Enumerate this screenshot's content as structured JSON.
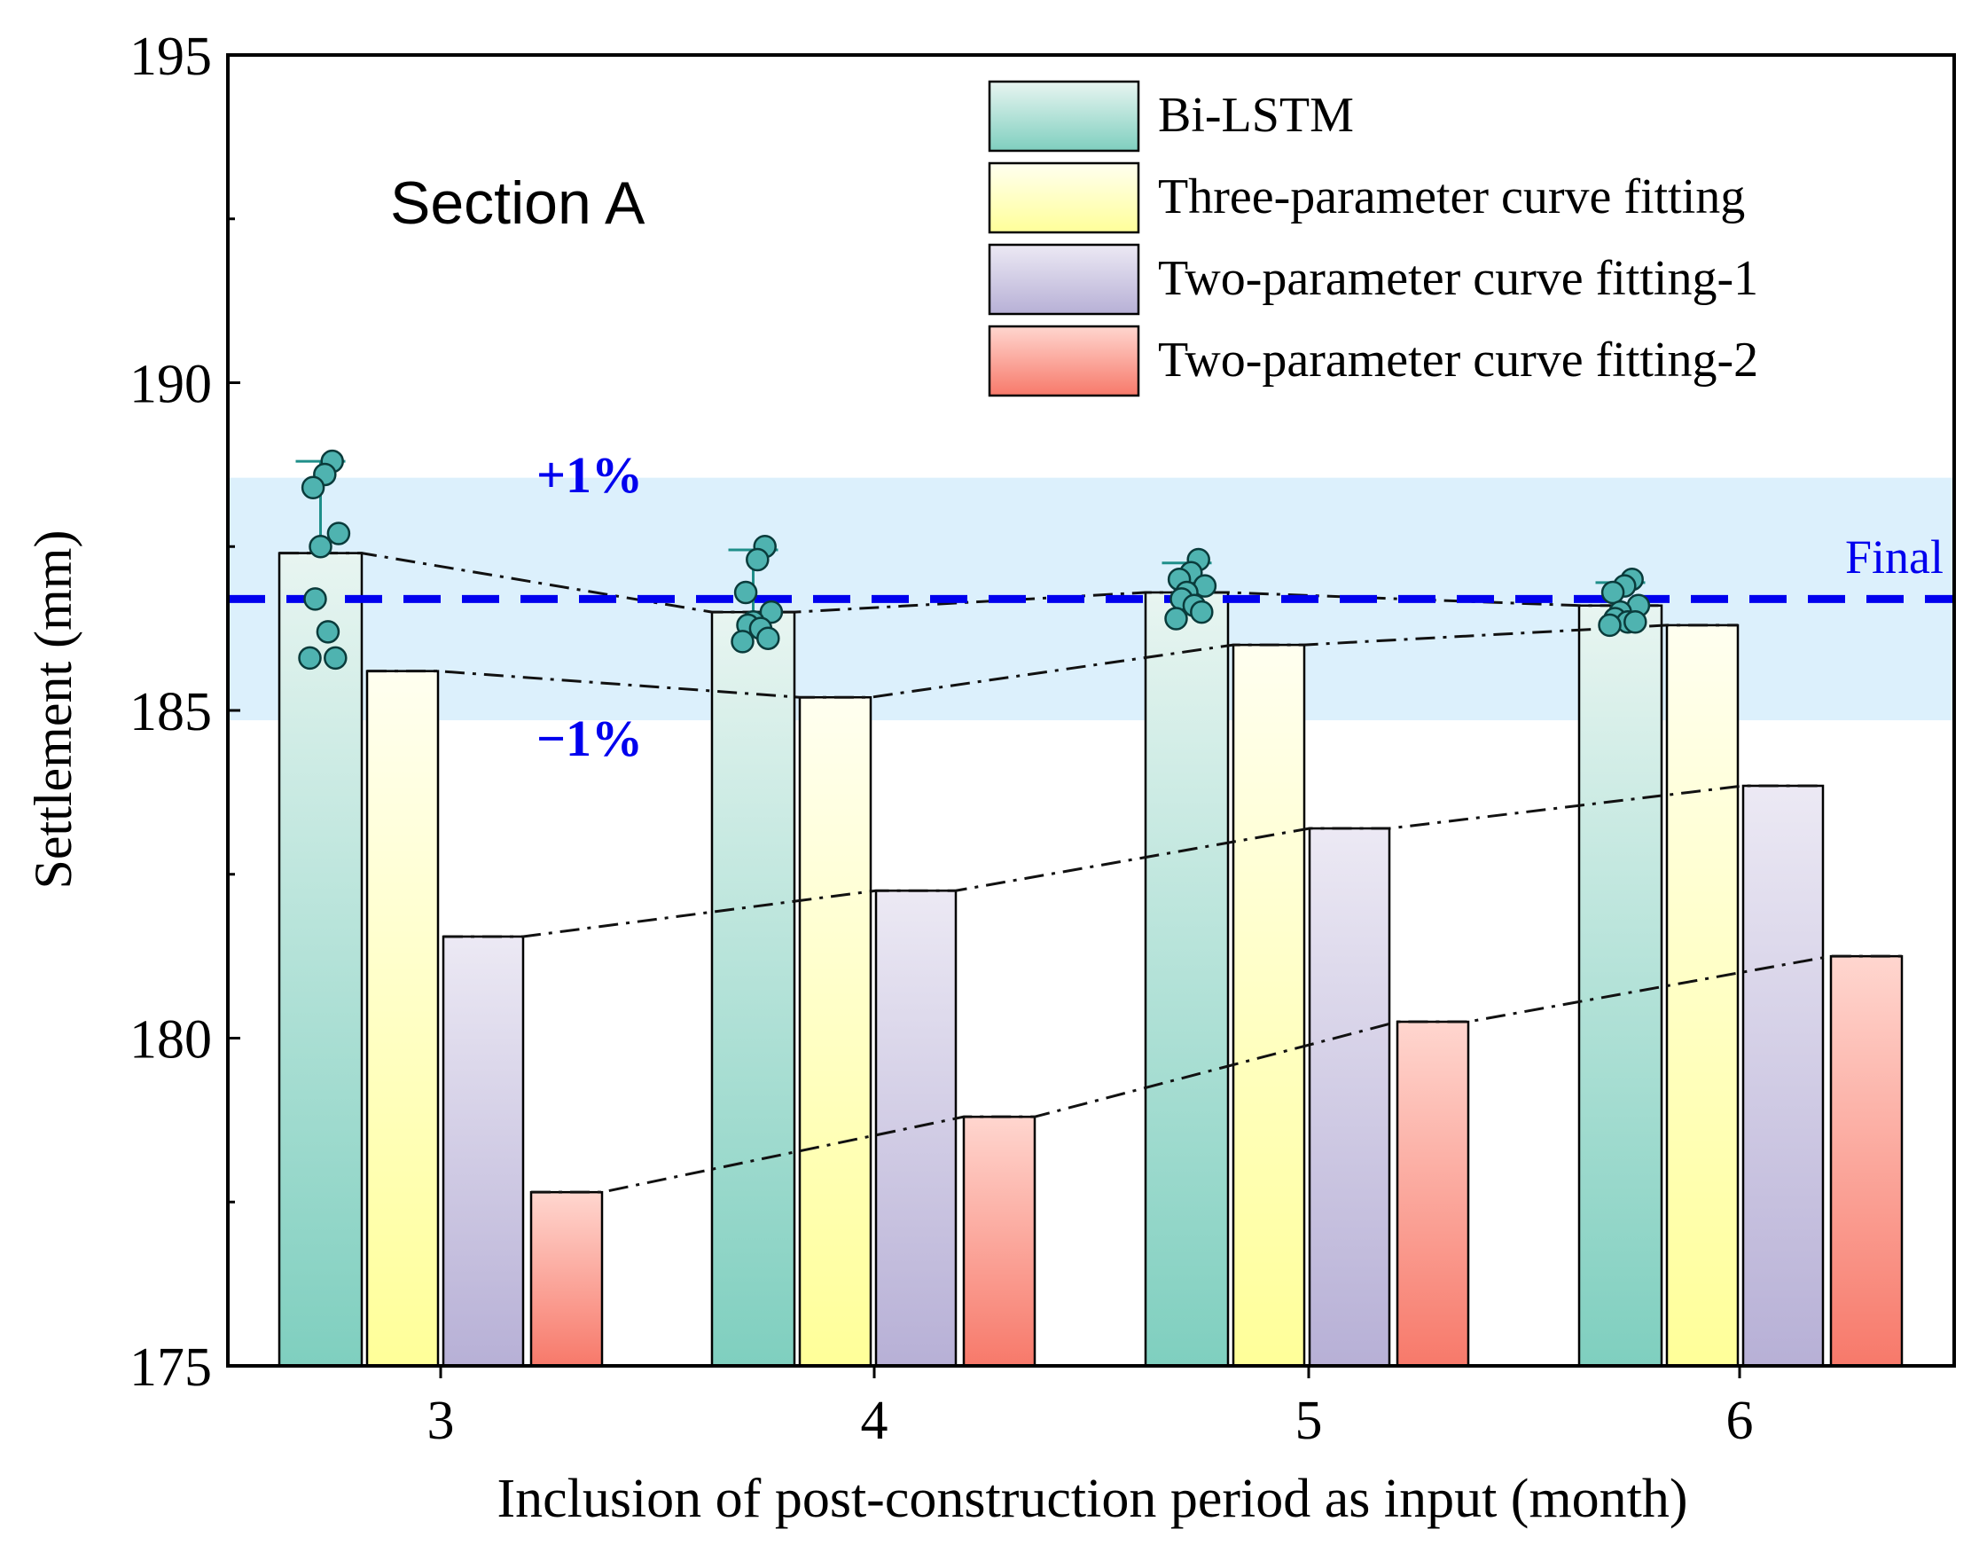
{
  "chart_data": {
    "type": "bar",
    "section_label": "Section A",
    "xlabel": "Inclusion of post-construction period as input (month)",
    "ylabel": "Settlement (mm)",
    "ylim": [
      175,
      195
    ],
    "yticks": [
      175,
      180,
      185,
      190,
      195
    ],
    "categories": [
      "3",
      "4",
      "5",
      "6"
    ],
    "series": [
      {
        "name": "Bi-LSTM",
        "values": [
          187.4,
          186.5,
          186.8,
          186.6
        ],
        "color_top": "#e8f5f1",
        "color_bottom": "#7fcfbf",
        "error_upper": [
          188.8,
          187.45,
          187.25,
          186.95
        ],
        "points": [
          [
            188.8,
            188.6,
            188.4,
            187.7,
            187.5,
            186.7,
            186.2,
            185.8,
            185.8
          ],
          [
            187.5,
            187.3,
            186.8,
            186.5,
            186.35,
            186.3,
            186.25,
            186.1,
            186.05
          ],
          [
            187.3,
            187.1,
            187.0,
            186.9,
            186.8,
            186.7,
            186.6,
            186.5,
            186.4
          ],
          [
            187.0,
            186.9,
            186.8,
            186.6,
            186.5,
            186.4,
            186.35,
            186.35,
            186.3
          ]
        ]
      },
      {
        "name": "Three-parameter curve fitting",
        "values": [
          185.6,
          185.2,
          186.0,
          186.3
        ],
        "color_top": "#fffff0",
        "color_bottom": "#ffff99"
      },
      {
        "name": "Two-parameter curve fitting-1",
        "values": [
          181.55,
          182.25,
          183.2,
          183.85
        ],
        "color_top": "#ece9f4",
        "color_bottom": "#b7b0d6"
      },
      {
        "name": "Two-parameter curve fitting-2",
        "values": [
          177.65,
          178.8,
          180.25,
          181.25
        ],
        "color_top": "#ffd6cf",
        "color_bottom": "#f7796a"
      }
    ],
    "reference": {
      "label": "Final",
      "value": 186.7,
      "band": [
        184.85,
        188.55
      ],
      "upper_label": "+1%",
      "lower_label": "−1%",
      "color": "#0000ee",
      "band_color": "#dcf0fc"
    }
  }
}
